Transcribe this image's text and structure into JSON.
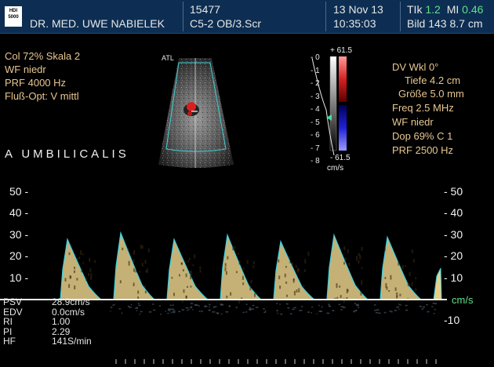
{
  "header": {
    "logo": "HDI 5000",
    "clinic": "DR. MED. UWE NABIELEK",
    "patient_id": "15477",
    "probe": "C5-2 OB/3.Scr",
    "date": "13 Nov 13",
    "time": "10:35:03",
    "tik_label": "TIk",
    "tik_value": "1.2",
    "mi_label": "MI",
    "mi_value": "0.46",
    "image_info": "Bild 143  8.7 cm"
  },
  "color_settings": {
    "col": "Col 72%  Skala 2",
    "wf": "WF niedr",
    "prf": "PRF 4000  Hz",
    "flow_opt": "Fluß-Opt: V mittl"
  },
  "doppler_settings": {
    "angle": "DV Wkl 0°",
    "depth": "Tiefe 4.2  cm",
    "gate": "Größe 5.0  mm",
    "freq": "Freq 2.5  MHz",
    "wf": "WF niedr",
    "dop": "Dop 69%  C 1",
    "prf": "PRF 2500  Hz"
  },
  "bmode": {
    "atl_label": "ATL",
    "vessel_label": "A  UMBILICALIS"
  },
  "color_bar": {
    "top": "+ 61.5",
    "bottom": "- 61.5",
    "unit": "cm/s",
    "depth_ticks": [
      "0",
      "1",
      "2",
      "3",
      "4",
      "5",
      "6",
      "7",
      "8"
    ]
  },
  "spectrum": {
    "left_scale": [
      "50",
      "40",
      "30",
      "20",
      "10"
    ],
    "right_scale": [
      "50",
      "40",
      "30",
      "20",
      "10"
    ],
    "right_neg": "-10",
    "unit": "cm/s"
  },
  "measurements": [
    {
      "label": "PSV",
      "value": "28.9cm/s"
    },
    {
      "label": "EDV",
      "value": "0.0cm/s"
    },
    {
      "label": "RI",
      "value": "1.00"
    },
    {
      "label": "PI",
      "value": "2.29"
    },
    {
      "label": "HF",
      "value": "141S/min"
    }
  ],
  "colors": {
    "header_bg": "#0d2e52",
    "settings_text": "#e7c690",
    "spectrum_fill": "#e8d08a",
    "spectrum_edge": "#3fd0e0",
    "mi_value": "#5fe08a",
    "baseline_label": "#5fe08a"
  }
}
